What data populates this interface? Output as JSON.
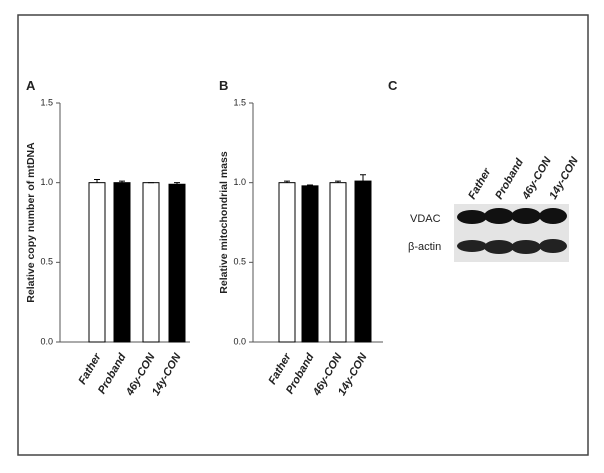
{
  "chart_data": [
    {
      "type": "bar",
      "panel": "A",
      "y_label": "Relative copy number of  mtDNA",
      "categories": [
        "Father",
        "Proband",
        "46y-CON",
        "14y-CON"
      ],
      "values": [
        1.0,
        1.0,
        1.0,
        0.99
      ],
      "errors": [
        0.02,
        0.01,
        0.0,
        0.01
      ],
      "colors": [
        "#ffffff",
        "#000000",
        "#ffffff",
        "#000000"
      ],
      "ylim": [
        0,
        1.5
      ],
      "yticks": [
        {
          "value": 0,
          "label": "0.0"
        },
        {
          "value": 0.5,
          "label": "0.5"
        },
        {
          "value": 1,
          "label": "1.0"
        },
        {
          "value": 1.5,
          "label": "1.5"
        }
      ]
    },
    {
      "type": "bar",
      "panel": "B",
      "y_label": "Relative mitochondrial  mass",
      "categories": [
        "Father",
        "Proband",
        "46y-CON",
        "14y-CON"
      ],
      "values": [
        1.0,
        0.98,
        1.0,
        1.01
      ],
      "errors": [
        0.01,
        0.005,
        0.01,
        0.04
      ],
      "colors": [
        "#ffffff",
        "#000000",
        "#ffffff",
        "#000000"
      ],
      "ylim": [
        0,
        1.5
      ],
      "yticks": [
        {
          "value": 0,
          "label": "0.0"
        },
        {
          "value": 0.5,
          "label": "0.5"
        },
        {
          "value": 1,
          "label": "1.0"
        },
        {
          "value": 1.5,
          "label": "1.5"
        }
      ]
    }
  ],
  "blot": {
    "panel": "C",
    "lanes": [
      "Father",
      "Proband",
      "46y-CON",
      "14y-CON"
    ],
    "rows": [
      "VDAC",
      "β-actin"
    ]
  }
}
